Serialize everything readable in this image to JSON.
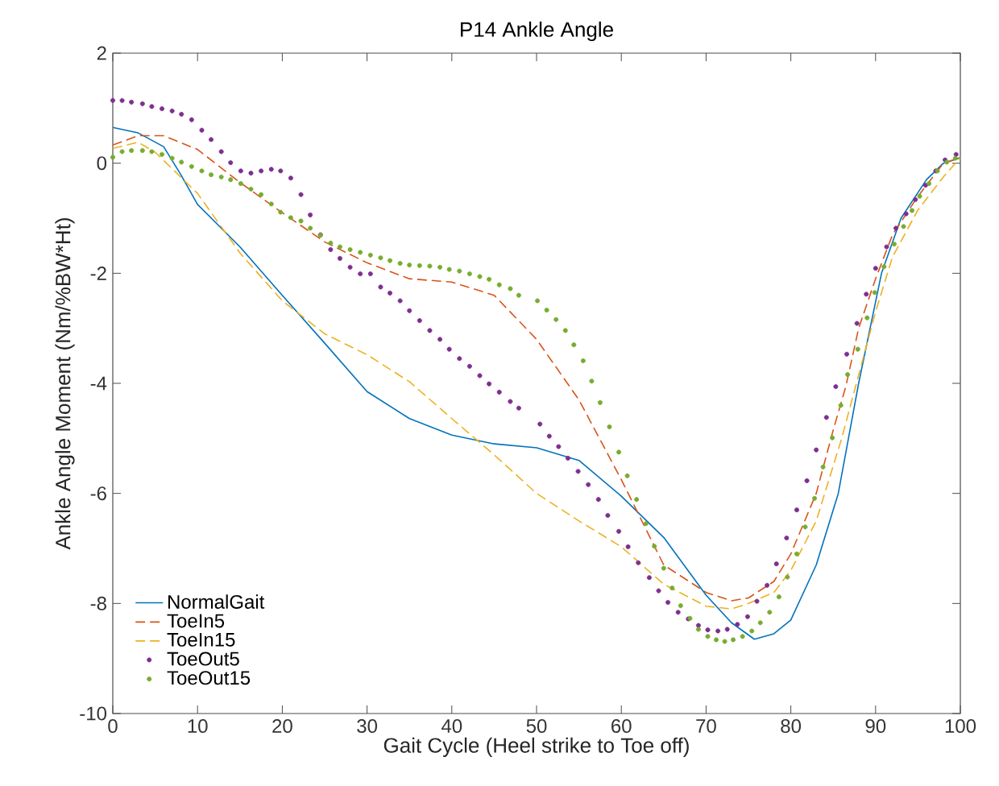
{
  "chart_data": {
    "type": "line",
    "title": "P14 Ankle Angle",
    "xlabel": "Gait Cycle (Heel strike to Toe off)",
    "ylabel": "Ankle Angle Moment (Nm/%BW*Ht)",
    "xlim": [
      0,
      100
    ],
    "ylim": [
      -10,
      2
    ],
    "xticks": [
      0,
      10,
      20,
      30,
      40,
      50,
      60,
      70,
      80,
      90,
      100
    ],
    "yticks": [
      -10,
      -8,
      -6,
      -4,
      -2,
      0,
      2
    ],
    "legend": "bottom left",
    "series": [
      {
        "name": "NormalGait",
        "line_style": "solid",
        "color": "#0072bd",
        "x": [
          0,
          3,
          6,
          8,
          10,
          15,
          20,
          25,
          30,
          35,
          40,
          45,
          50,
          55,
          60,
          65,
          70,
          73,
          75.7,
          78,
          80,
          83,
          85.6,
          88,
          90.7,
          93,
          96,
          98,
          100
        ],
        "values": [
          0.65,
          0.55,
          0.3,
          -0.2,
          -0.75,
          -1.52,
          -2.4,
          -3.27,
          -4.15,
          -4.64,
          -4.94,
          -5.1,
          -5.17,
          -5.4,
          -6.05,
          -6.8,
          -7.85,
          -8.35,
          -8.65,
          -8.55,
          -8.3,
          -7.3,
          -6,
          -4,
          -2,
          -1.0,
          -0.3,
          0.0,
          0.1
        ]
      },
      {
        "name": "ToeIn5",
        "line_style": "dashed",
        "color": "#d95319",
        "x": [
          0,
          3,
          6,
          10,
          15,
          20,
          25,
          30,
          35,
          40,
          45,
          50,
          55,
          60,
          65,
          70,
          73,
          75,
          78,
          80,
          83,
          85,
          86.5,
          88,
          90,
          92,
          95,
          98,
          100
        ],
        "values": [
          0.33,
          0.5,
          0.5,
          0.25,
          -0.35,
          -0.9,
          -1.43,
          -1.81,
          -2.1,
          -2.16,
          -2.4,
          -3.2,
          -4.3,
          -5.75,
          -7.3,
          -7.8,
          -7.95,
          -7.9,
          -7.6,
          -7.1,
          -6,
          -4.85,
          -4.05,
          -3.0,
          -2.1,
          -1.3,
          -0.6,
          0.0,
          0.1
        ]
      },
      {
        "name": "ToeIn15",
        "line_style": "dashed",
        "color": "#edb120",
        "x": [
          0,
          3,
          5,
          10,
          15,
          20,
          25,
          30,
          35,
          40,
          45,
          50,
          55,
          60,
          65,
          70,
          73,
          75,
          78,
          80,
          83,
          86,
          88,
          90,
          92,
          95,
          98,
          100
        ],
        "values": [
          0.27,
          0.38,
          0.2,
          -0.55,
          -1.63,
          -2.5,
          -3.1,
          -3.48,
          -3.97,
          -4.64,
          -5.3,
          -6.0,
          -6.5,
          -6.97,
          -7.65,
          -8.05,
          -8.1,
          -8.0,
          -7.8,
          -7.4,
          -6.5,
          -5.0,
          -3.85,
          -2.7,
          -1.7,
          -0.85,
          -0.25,
          0.1
        ]
      },
      {
        "name": "ToeOut5",
        "type": "scatter",
        "marker": "circle",
        "color": "#7e2f8e",
        "x": [
          0,
          1.1,
          2.2,
          3.5,
          4.6,
          5.8,
          7.0,
          8.1,
          9.3,
          10.5,
          11.6,
          12.8,
          13.9,
          15.1,
          16.3,
          17.5,
          18.7,
          19.8,
          21.0,
          22.2,
          23.3,
          24.5,
          25.7,
          26.8,
          28.0,
          29.2,
          30.4,
          31.6,
          32.7,
          33.9,
          35.0,
          36.2,
          37.4,
          38.6,
          39.7,
          40.9,
          42.1,
          43.3,
          44.4,
          45.6,
          46.9,
          47.9,
          50.4,
          51.5,
          52.6,
          53.7,
          54.9,
          56.1,
          57.3,
          58.4,
          59.7,
          60.8,
          62.0,
          63.3,
          64.4,
          65.5,
          66.7,
          67.9,
          69.1,
          70.2,
          71.4,
          72.5,
          73.7,
          74.9,
          76.0,
          77.2,
          78.3,
          79.5,
          80.7,
          81.9,
          83.0,
          84.2,
          85.3,
          86.6,
          87.8,
          88.9,
          90.0,
          91.3,
          92.4,
          93.6,
          94.7,
          95.9,
          97.1,
          98.2,
          99.5
        ],
        "values": [
          1.14,
          1.14,
          1.11,
          1.08,
          1.03,
          0.99,
          0.95,
          0.89,
          0.79,
          0.6,
          0.43,
          0.21,
          0.01,
          -0.14,
          -0.18,
          -0.14,
          -0.11,
          -0.14,
          -0.27,
          -0.57,
          -0.94,
          -1.3,
          -1.57,
          -1.73,
          -1.89,
          -2.01,
          -2.01,
          -2.25,
          -2.36,
          -2.5,
          -2.68,
          -2.86,
          -3.04,
          -3.2,
          -3.38,
          -3.55,
          -3.69,
          -3.86,
          -4.01,
          -4.16,
          -4.33,
          -4.45,
          -4.74,
          -4.96,
          -5.15,
          -5.36,
          -5.6,
          -5.84,
          -6.11,
          -6.4,
          -6.69,
          -6.97,
          -7.26,
          -7.53,
          -7.77,
          -7.98,
          -8.16,
          -8.28,
          -8.4,
          -8.48,
          -8.5,
          -8.47,
          -8.38,
          -8.24,
          -7.96,
          -7.67,
          -7.28,
          -6.81,
          -6.3,
          -5.77,
          -5.21,
          -4.62,
          -4.06,
          -3.47,
          -2.91,
          -2.38,
          -1.91,
          -1.52,
          -1.18,
          -0.92,
          -0.66,
          -0.4,
          -0.14,
          0.06,
          0.16
        ]
      },
      {
        "name": "ToeOut15",
        "type": "scatter",
        "marker": "circle",
        "color": "#77ac30",
        "x": [
          0,
          1.1,
          2.2,
          3.5,
          4.6,
          5.8,
          7.0,
          8.1,
          9.3,
          10.5,
          11.6,
          12.8,
          13.9,
          15.1,
          16.3,
          17.5,
          18.7,
          19.8,
          21.0,
          22.2,
          23.3,
          24.5,
          25.7,
          26.8,
          28.0,
          29.2,
          30.4,
          31.6,
          32.7,
          33.9,
          35.0,
          36.2,
          37.4,
          38.6,
          39.7,
          40.9,
          42.1,
          43.3,
          44.4,
          45.6,
          46.9,
          47.9,
          50.1,
          51.2,
          52.3,
          53.4,
          54.4,
          55.5,
          56.5,
          57.5,
          58.6,
          59.7,
          60.7,
          61.8,
          62.9,
          63.9,
          65.0,
          66.0,
          67.0,
          68.1,
          69.1,
          70.2,
          71.2,
          72.2,
          73.2,
          74.3,
          75.4,
          76.4,
          77.5,
          78.6,
          79.6,
          80.7,
          81.7,
          82.8,
          83.8,
          84.9,
          85.9,
          86.7,
          87.9,
          89.0,
          89.9,
          91.0,
          92.2,
          93.3,
          94.3,
          95.2,
          96.3,
          97.3,
          98.4,
          99.4
        ],
        "values": [
          0.11,
          0.21,
          0.23,
          0.23,
          0.21,
          0.16,
          0.09,
          0.02,
          -0.06,
          -0.14,
          -0.21,
          -0.25,
          -0.3,
          -0.37,
          -0.47,
          -0.57,
          -0.74,
          -0.89,
          -0.99,
          -1.05,
          -1.18,
          -1.31,
          -1.45,
          -1.52,
          -1.57,
          -1.62,
          -1.67,
          -1.72,
          -1.77,
          -1.82,
          -1.85,
          -1.86,
          -1.87,
          -1.89,
          -1.93,
          -1.96,
          -2.01,
          -2.06,
          -2.11,
          -2.21,
          -2.28,
          -2.4,
          -2.5,
          -2.67,
          -2.84,
          -3.04,
          -3.3,
          -3.59,
          -3.96,
          -4.35,
          -4.79,
          -5.25,
          -5.68,
          -6.11,
          -6.55,
          -6.96,
          -7.36,
          -7.72,
          -8.04,
          -8.27,
          -8.47,
          -8.6,
          -8.66,
          -8.69,
          -8.66,
          -8.6,
          -8.5,
          -8.35,
          -8.16,
          -7.88,
          -7.52,
          -7.1,
          -6.61,
          -6.09,
          -5.52,
          -4.99,
          -4.4,
          -3.84,
          -3.38,
          -2.81,
          -2.35,
          -1.88,
          -1.47,
          -1.15,
          -0.86,
          -0.6,
          -0.37,
          -0.14,
          0.02,
          0.09
        ]
      }
    ]
  }
}
